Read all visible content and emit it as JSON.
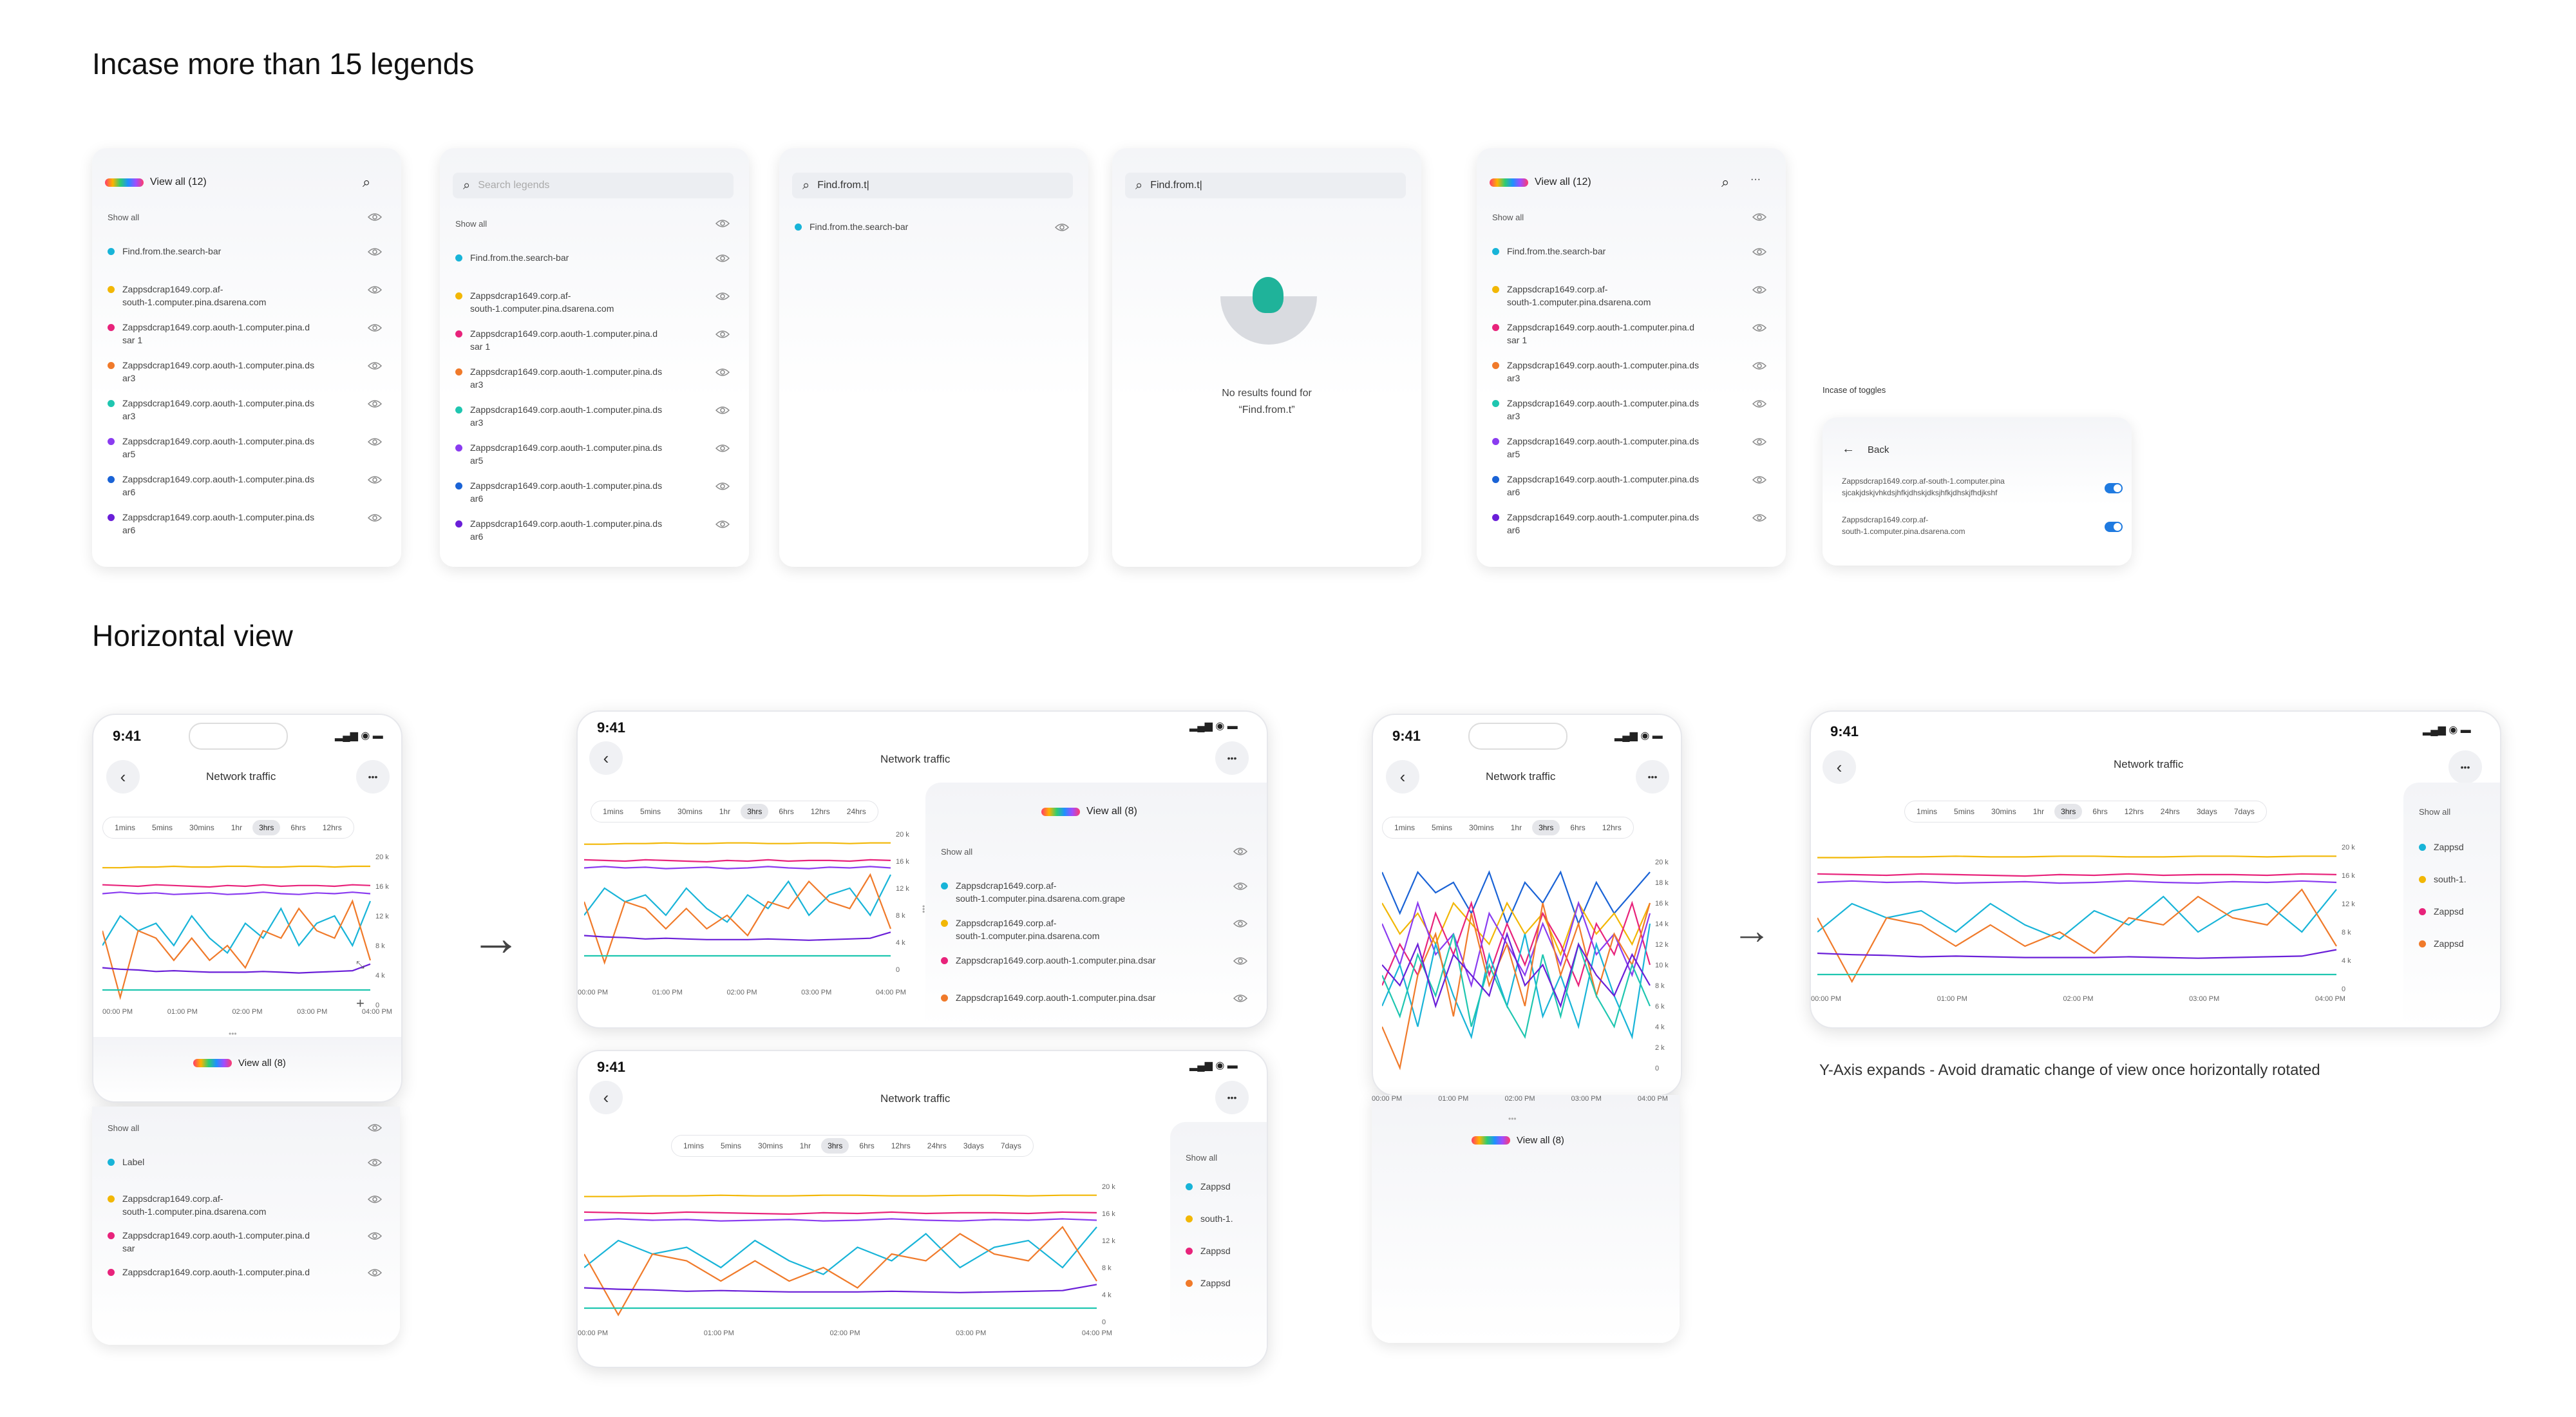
{
  "sections": {
    "legends_title": "Incase more than 15 legends",
    "horizontal_title": "Horizontal view"
  },
  "legend_panel": {
    "view_all": "View all (12)",
    "show_all": "Show all",
    "search_placeholder": "Search legends",
    "search_value": "Find.from.t",
    "items": [
      {
        "color": "#18b4d8",
        "line1": "Find.from.the.search-bar",
        "line2": ""
      },
      {
        "color": "#f2b705",
        "line1": "Zappsdcrap1649.corp.af-",
        "line2": "south-1.computer.pina.dsarena.com"
      },
      {
        "color": "#e8237b",
        "line1": "Zappsdcrap1649.corp.aouth-1.computer.pina.d",
        "line2": "sar 1"
      },
      {
        "color": "#f07a2a",
        "line1": "Zappsdcrap1649.corp.aouth-1.computer.pina.ds",
        "line2": "ar3"
      },
      {
        "color": "#1fc6b0",
        "line1": "Zappsdcrap1649.corp.aouth-1.computer.pina.ds",
        "line2": "ar3"
      },
      {
        "color": "#8a3cf0",
        "line1": "Zappsdcrap1649.corp.aouth-1.computer.pina.ds",
        "line2": "ar5"
      },
      {
        "color": "#1a63d6",
        "line1": "Zappsdcrap1649.corp.aouth-1.computer.pina.ds",
        "line2": "ar6"
      },
      {
        "color": "#6a1fd8",
        "line1": "Zappsdcrap1649.corp.aouth-1.computer.pina.ds",
        "line2": "ar6"
      }
    ],
    "search_result": "Find.from.the.search-bar",
    "no_results_line1": "No results found for",
    "no_results_line2": "“Find.from.t”"
  },
  "toggles": {
    "caption": "Incase of toggles",
    "back": "Back",
    "items": [
      {
        "line1": "Zappsdcrap1649.corp.af-south-1.computer.pina",
        "line2": "sjcakjdskjvhkdsjhfkjdhskjdksjhfkjdhskjfhdjkshf"
      },
      {
        "line1": "Zappsdcrap1649.corp.af-",
        "line2": "south-1.computer.pina.dsarena.com"
      }
    ]
  },
  "phone": {
    "time": "9:41",
    "title": "Network traffic",
    "more": "•••",
    "back": "‹",
    "ranges": [
      "1mins",
      "5mins",
      "30mins",
      "1hr",
      "3hrs",
      "6hrs",
      "12hrs",
      "24hrs",
      "3days",
      "7days"
    ],
    "active_range": "3hrs",
    "view_all": "View all (8)",
    "show_all": "Show all",
    "legend_items": [
      {
        "color": "#18b4d8",
        "line1": "Label",
        "line2": ""
      },
      {
        "color": "#f2b705",
        "line1": "Zappsdcrap1649.corp.af-",
        "line2": "south-1.computer.pina.dsarena.com"
      },
      {
        "color": "#e8237b",
        "line1": "Zappsdcrap1649.corp.aouth-1.computer.pina.d",
        "line2": "sar"
      },
      {
        "color": "#e8237b",
        "line1": "Zappsdcrap1649.corp.aouth-1.computer.pina.d",
        "line2": ""
      }
    ],
    "wide_legend_items": [
      {
        "color": "#18b4d8",
        "line1": "Zappsdcrap1649.corp.af-",
        "line2": "south-1.computer.pina.dsarena.com.grape"
      },
      {
        "color": "#f2b705",
        "line1": "Zappsdcrap1649.corp.af-",
        "line2": "south-1.computer.pina.dsarena.com"
      },
      {
        "color": "#e8237b",
        "line1": "Zappsdcrap1649.corp.aouth-1.computer.pina.dsar",
        "line2": ""
      },
      {
        "color": "#f07a2a",
        "line1": "Zappsdcrap1649.corp.aouth-1.computer.pina.dsar",
        "line2": ""
      }
    ],
    "clipped_items": [
      "Zappsd",
      "south-1.",
      "Zappsd",
      "Zappsd"
    ],
    "clipped_items2": [
      "Zappsd",
      "south-1.",
      "Zappsd",
      "Zappsd"
    ]
  },
  "caption_yaxis": "Y-Axis expands - Avoid dramatic change of view once horizontally rotated",
  "chart_data": {
    "type": "line",
    "x_ticks": [
      "00:00 PM",
      "01:00 PM",
      "02:00 PM",
      "03:00 PM",
      "04:00 PM"
    ],
    "y_ticks_small": [
      "20 k",
      "16 k",
      "12 k",
      "8 k",
      "4 k",
      "0"
    ],
    "y_ticks_tall": [
      "20 k",
      "18 k",
      "16 k",
      "14 k",
      "12 k",
      "10 k",
      "8 k",
      "6 k",
      "4 k",
      "2 k",
      "0"
    ],
    "series": [
      {
        "color": "#f2b705",
        "values": [
          18.5,
          18.5,
          18.6,
          18.6,
          18.7,
          18.6,
          18.6,
          18.7,
          18.7,
          18.6,
          18.6,
          18.7,
          18.7,
          18.6,
          18.7,
          18.7
        ]
      },
      {
        "color": "#e8237b",
        "values": [
          16.2,
          16.1,
          16.0,
          16.2,
          16.1,
          16.0,
          15.9,
          16.1,
          16.0,
          16.2,
          16.0,
          16.1,
          16.1,
          16.0,
          16.2,
          16.1
        ]
      },
      {
        "color": "#8a3cf0",
        "values": [
          15.0,
          15.2,
          15.0,
          15.1,
          14.9,
          15.0,
          15.1,
          14.9,
          15.0,
          15.2,
          15.0,
          14.9,
          15.1,
          15.0,
          15.2,
          15.0
        ]
      },
      {
        "color": "#18b4d8",
        "values": [
          8,
          12,
          10,
          11,
          8,
          12,
          9,
          7,
          11,
          9,
          13,
          8,
          11,
          12,
          8,
          14
        ]
      },
      {
        "color": "#f07a2a",
        "values": [
          10,
          1,
          10,
          9,
          6,
          9,
          6,
          8,
          5,
          10,
          9,
          13,
          10,
          9,
          14,
          6
        ]
      },
      {
        "color": "#6a1fd8",
        "values": [
          5,
          4.8,
          4.7,
          4.5,
          4.6,
          4.5,
          4.4,
          4.4,
          4.4,
          4.5,
          4.4,
          4.3,
          4.4,
          4.5,
          4.6,
          5.5
        ]
      },
      {
        "color": "#1fc6b0",
        "values": [
          2,
          2,
          2,
          2,
          2,
          2,
          2,
          2,
          2,
          2,
          2,
          2,
          2,
          2,
          2,
          2
        ]
      }
    ],
    "tall_series": [
      {
        "color": "#1a63d6",
        "values": [
          19,
          15,
          19,
          17,
          18,
          15,
          19,
          14,
          18,
          16,
          19,
          14,
          18,
          15,
          17,
          19
        ]
      },
      {
        "color": "#f2b705",
        "values": [
          16,
          13,
          15,
          12,
          16,
          14,
          12,
          16,
          13,
          15,
          11,
          16,
          13,
          15,
          12,
          16
        ]
      },
      {
        "color": "#e8237b",
        "values": [
          8,
          12,
          9,
          15,
          11,
          16,
          9,
          14,
          10,
          15,
          12,
          8,
          14,
          11,
          16,
          10
        ]
      },
      {
        "color": "#8a3cf0",
        "values": [
          14,
          10,
          16,
          11,
          13,
          8,
          15,
          12,
          9,
          14,
          10,
          16,
          11,
          13,
          9,
          15
        ]
      },
      {
        "color": "#18b4d8",
        "values": [
          6,
          10,
          4,
          12,
          7,
          3,
          11,
          6,
          13,
          5,
          9,
          4,
          12,
          7,
          3,
          14
        ]
      },
      {
        "color": "#f07a2a",
        "values": [
          4,
          0,
          9,
          13,
          5,
          15,
          8,
          12,
          6,
          16,
          9,
          14,
          7,
          13,
          10,
          16
        ]
      },
      {
        "color": "#1fc6b0",
        "values": [
          9,
          5,
          11,
          7,
          13,
          4,
          10,
          6,
          3,
          11,
          5,
          12,
          7,
          4,
          10,
          6
        ]
      },
      {
        "color": "#6a1fd8",
        "values": [
          10,
          8,
          12,
          6,
          11,
          9,
          7,
          13,
          8,
          10,
          6,
          12,
          9,
          7,
          11,
          8
        ]
      }
    ]
  }
}
